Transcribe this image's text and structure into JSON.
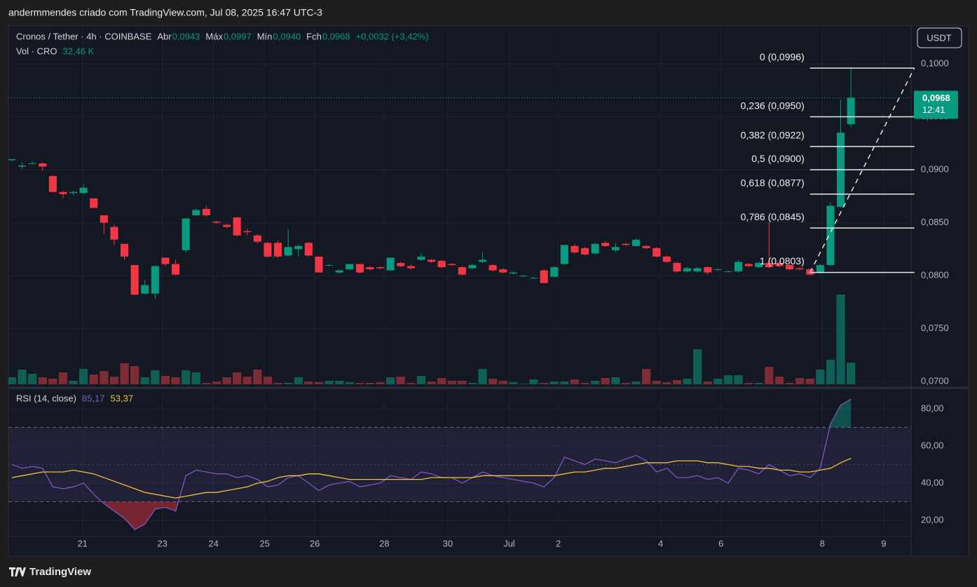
{
  "chart_data": {
    "type": "candlestick",
    "attribution": "andermmendes criado com TradingView.com, Jul 08, 2025 16:47 UTC-3",
    "title": "Cronos / Tether · 4h · COINBASE",
    "ohlc_legend": [
      {
        "name": "Abr",
        "value": 0.0943,
        "label": "0,0943"
      },
      {
        "name": "Máx",
        "value": 0.0997,
        "label": "0,0997"
      },
      {
        "name": "Mín",
        "value": 0.094,
        "label": "0,0940"
      },
      {
        "name": "Fch",
        "value": 0.0968,
        "label": "0,0968"
      }
    ],
    "change": {
      "value": 0.0032,
      "percent": 3.42,
      "label": "+0,0032 (+3,42%)"
    },
    "volume_legend": {
      "name": "Vol · CRO",
      "value": 32460,
      "label": "32,46 K"
    },
    "currency": "USDT",
    "brand": "TradingView",
    "up_color": "#089981",
    "down_color": "#f23645",
    "up_volume_color": "#0f5f57",
    "down_volume_color": "#7d2c36",
    "open": [
      0.0909,
      0.0903,
      0.0906,
      0.0906,
      0.0894,
      0.0879,
      0.0878,
      0.0878,
      0.0873,
      0.0857,
      0.0846,
      0.083,
      0.081,
      0.0783,
      0.0783,
      0.0817,
      0.0811,
      0.0824,
      0.0857,
      0.0863,
      0.0851,
      0.0848,
      0.0855,
      0.0842,
      0.0838,
      0.0831,
      0.0831,
      0.0819,
      0.0825,
      0.0831,
      0.0818,
      0.081,
      0.0803,
      0.0806,
      0.0811,
      0.0808,
      0.0808,
      0.0805,
      0.0812,
      0.0809,
      0.0815,
      0.0815,
      0.0814,
      0.0811,
      0.0808,
      0.0807,
      0.0813,
      0.081,
      0.0806,
      0.0802,
      0.08,
      0.0798,
      0.0805,
      0.0799,
      0.0811,
      0.0828,
      0.0826,
      0.0821,
      0.0831,
      0.0824,
      0.083,
      0.0828,
      0.0828,
      0.0826,
      0.0818,
      0.0812,
      0.0804,
      0.0804,
      0.0808,
      0.0806,
      0.0804,
      0.0804,
      0.0811,
      0.0808,
      0.0812,
      0.0812,
      0.081,
      0.0807,
      0.0806,
      0.0803,
      0.081,
      0.0865,
      0.0943
    ],
    "high": [
      0.091,
      0.0907,
      0.0908,
      0.0907,
      0.0895,
      0.088,
      0.088,
      0.0886,
      0.0873,
      0.0857,
      0.0848,
      0.083,
      0.081,
      0.0796,
      0.0809,
      0.0817,
      0.0815,
      0.0854,
      0.0863,
      0.0866,
      0.0852,
      0.0849,
      0.0855,
      0.0844,
      0.0839,
      0.0832,
      0.0833,
      0.0844,
      0.0829,
      0.0832,
      0.0818,
      0.0811,
      0.0806,
      0.0811,
      0.0811,
      0.0809,
      0.0809,
      0.0817,
      0.0813,
      0.0811,
      0.0822,
      0.0816,
      0.0815,
      0.0812,
      0.0809,
      0.0811,
      0.0822,
      0.0811,
      0.0807,
      0.0804,
      0.0801,
      0.0799,
      0.0806,
      0.0809,
      0.0829,
      0.083,
      0.0827,
      0.0831,
      0.0833,
      0.0831,
      0.0831,
      0.0835,
      0.0829,
      0.0827,
      0.0819,
      0.0813,
      0.0808,
      0.0808,
      0.0809,
      0.0807,
      0.0805,
      0.0815,
      0.0812,
      0.0813,
      0.085,
      0.0813,
      0.0811,
      0.0808,
      0.0807,
      0.0811,
      0.0869,
      0.0966,
      0.0997
    ],
    "low": [
      0.0908,
      0.0901,
      0.0905,
      0.0899,
      0.0879,
      0.0873,
      0.0876,
      0.0877,
      0.0864,
      0.0839,
      0.0829,
      0.0815,
      0.0782,
      0.0782,
      0.0778,
      0.0809,
      0.08,
      0.0822,
      0.0856,
      0.0856,
      0.0849,
      0.0845,
      0.0837,
      0.0838,
      0.083,
      0.0817,
      0.0817,
      0.0818,
      0.0818,
      0.0818,
      0.0803,
      0.0809,
      0.0802,
      0.0805,
      0.0802,
      0.0805,
      0.0806,
      0.0805,
      0.0808,
      0.0806,
      0.0814,
      0.0812,
      0.0807,
      0.0809,
      0.08,
      0.0806,
      0.0812,
      0.0804,
      0.0802,
      0.0801,
      0.0799,
      0.0797,
      0.0793,
      0.0798,
      0.081,
      0.0821,
      0.0819,
      0.082,
      0.0827,
      0.0822,
      0.0828,
      0.0827,
      0.0825,
      0.0817,
      0.0812,
      0.0803,
      0.0803,
      0.0803,
      0.0801,
      0.0805,
      0.0803,
      0.0803,
      0.0808,
      0.0807,
      0.0807,
      0.0808,
      0.0805,
      0.0805,
      0.08,
      0.0802,
      0.0809,
      0.0864,
      0.094
    ],
    "close": [
      0.091,
      0.0904,
      0.0906,
      0.0903,
      0.0879,
      0.0877,
      0.0879,
      0.0883,
      0.0864,
      0.085,
      0.0834,
      0.0818,
      0.0782,
      0.0791,
      0.0809,
      0.0811,
      0.0801,
      0.0854,
      0.0862,
      0.0857,
      0.085,
      0.0846,
      0.0838,
      0.0841,
      0.0832,
      0.0818,
      0.0818,
      0.0827,
      0.0828,
      0.0819,
      0.0803,
      0.081,
      0.0805,
      0.0811,
      0.0803,
      0.0806,
      0.0807,
      0.0817,
      0.0809,
      0.0807,
      0.0818,
      0.0813,
      0.0808,
      0.081,
      0.0801,
      0.081,
      0.0815,
      0.0805,
      0.0803,
      0.0803,
      0.08,
      0.0798,
      0.0793,
      0.0808,
      0.0829,
      0.0822,
      0.082,
      0.083,
      0.0828,
      0.0827,
      0.0829,
      0.0834,
      0.0826,
      0.0818,
      0.0813,
      0.0804,
      0.0807,
      0.0807,
      0.0803,
      0.0806,
      0.0804,
      0.0813,
      0.0809,
      0.0812,
      0.0808,
      0.0809,
      0.0806,
      0.0806,
      0.0801,
      0.081,
      0.0866,
      0.0935,
      0.0968
    ],
    "volume": [
      10500,
      22050,
      15750,
      10500,
      8400,
      17850,
      5250,
      23100,
      14700,
      19950,
      11550,
      31500,
      27300,
      10500,
      21000,
      12600,
      10500,
      21000,
      17850,
      2100,
      4200,
      10500,
      17850,
      11550,
      22050,
      11550,
      2100,
      2100,
      10500,
      4200,
      3150,
      5250,
      5250,
      3150,
      2100,
      2100,
      3150,
      10500,
      11550,
      2100,
      12600,
      4200,
      9450,
      5250,
      5250,
      2100,
      23100,
      8400,
      5250,
      3150,
      1050,
      7350,
      2100,
      4200,
      4200,
      7350,
      2100,
      5250,
      9450,
      10500,
      2100,
      4200,
      23100,
      5250,
      3150,
      6300,
      8400,
      52500,
      4200,
      8400,
      13650,
      13650,
      2100,
      2100,
      26250,
      11550,
      2100,
      9450,
      8400,
      22050,
      36750,
      134400,
      32460
    ],
    "xlim": [
      -0.34,
      87.88
    ],
    "xticks": [
      {
        "value": 6.9,
        "label": "21"
      },
      {
        "value": 14.7,
        "label": "23"
      },
      {
        "value": 19.7,
        "label": "24"
      },
      {
        "value": 24.7,
        "label": "25"
      },
      {
        "value": 29.6,
        "label": "26"
      },
      {
        "value": 36.4,
        "label": "28"
      },
      {
        "value": 42.6,
        "label": "30"
      },
      {
        "value": 48.6,
        "label": "Jul"
      },
      {
        "value": 53.4,
        "label": "2"
      },
      {
        "value": 63.4,
        "label": "4"
      },
      {
        "value": 69.3,
        "label": "6"
      },
      {
        "value": 79.2,
        "label": "8"
      },
      {
        "value": 85.2,
        "label": "9"
      }
    ],
    "ylim": [
      0.06974,
      0.10338
    ],
    "yticks": [
      {
        "value": 0.07,
        "label": "0,0700"
      },
      {
        "value": 0.075,
        "label": "0,0750"
      },
      {
        "value": 0.08,
        "label": "0,0800"
      },
      {
        "value": 0.085,
        "label": "0,0850"
      },
      {
        "value": 0.09,
        "label": "0,0900"
      },
      {
        "value": 0.095,
        "label": "0,0950"
      },
      {
        "value": 0.1,
        "label": "0,1000"
      }
    ],
    "grid": true,
    "last_price": {
      "value": 0.0968,
      "label": "0,0968",
      "countdown": "12:41"
    },
    "fib": {
      "x": [
        78,
        88.2
      ],
      "prices": [
        0.0996,
        0.095,
        0.0922,
        0.09,
        0.0877,
        0.0845,
        0.0803
      ],
      "labels": [
        "0 (0,0996)",
        "0,236 (0,0950)",
        "0,382 (0,0922)",
        "0,5 (0,0900)",
        "0,618 (0,0877)",
        "0,786 (0,0845)",
        "1 (0,0803)"
      ]
    },
    "rsi": {
      "title": "RSI (14, close)",
      "ylim": [
        11.3,
        89.4
      ],
      "yticks": [
        {
          "value": 20,
          "label": "20,00"
        },
        {
          "value": 40,
          "label": "40,00"
        },
        {
          "value": 60,
          "label": "60,00"
        },
        {
          "value": 80,
          "label": "80,00"
        }
      ],
      "bands": [
        70,
        50,
        30
      ],
      "series": [
        {
          "color": "#7e57c2",
          "last_label": "85,17",
          "values": [
            50,
            48,
            49,
            48,
            38,
            37,
            38,
            40,
            34,
            29,
            25,
            21,
            15,
            18,
            26,
            27,
            25,
            44,
            47,
            46,
            45,
            45,
            43,
            44,
            42,
            38,
            39,
            43,
            44,
            40,
            36,
            39,
            40,
            41,
            38,
            39,
            40,
            44,
            43,
            42,
            46,
            45,
            43,
            43,
            40,
            43,
            46,
            44,
            43,
            42,
            41,
            40,
            38,
            43,
            54,
            52,
            50,
            53,
            52,
            51,
            53,
            55,
            52,
            46,
            48,
            43,
            43,
            44,
            42,
            43,
            40,
            48,
            47,
            45,
            50,
            47,
            44,
            45,
            43,
            48,
            72,
            82,
            85.17
          ]
        },
        {
          "color": "#f0c23b",
          "last_label": "53,37",
          "values": [
            43,
            44,
            45,
            46,
            46,
            46,
            47,
            46,
            45,
            43,
            41,
            39,
            37,
            35,
            34,
            33,
            32,
            33,
            34,
            35,
            35,
            36,
            37,
            38,
            40,
            41,
            43,
            44,
            44,
            45,
            45,
            44,
            43,
            42,
            42,
            42,
            42,
            42,
            42,
            42,
            42,
            43,
            43,
            43,
            43,
            43,
            44,
            44,
            44,
            44,
            44,
            44,
            44,
            44,
            45,
            46,
            46,
            47,
            48,
            48,
            49,
            50,
            51,
            51,
            51,
            52,
            52,
            52,
            51,
            51,
            50,
            49,
            49,
            48,
            48,
            47,
            47,
            46,
            46,
            47,
            48,
            51,
            53.37
          ]
        }
      ]
    }
  }
}
